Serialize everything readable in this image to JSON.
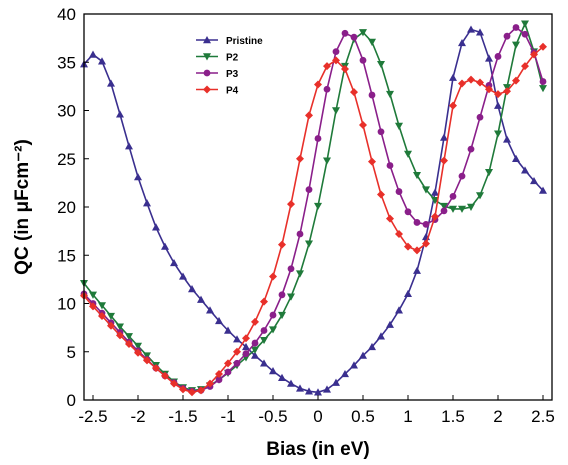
{
  "chart_data": {
    "type": "line",
    "title": "",
    "xlabel": "Bias (in eV)",
    "ylabel": "QC (in μFcm⁻²)",
    "xlim": [
      -2.6,
      2.6
    ],
    "ylim": [
      0,
      40
    ],
    "xticks": [
      -2.5,
      -2,
      -1.5,
      -1,
      -0.5,
      0,
      0.5,
      1,
      1.5,
      2,
      2.5
    ],
    "xtick_labels": [
      "-2.5",
      "-2",
      "-1.5",
      "-1",
      "-0.5",
      "0",
      "0.5",
      "1",
      "1.5",
      "2",
      "2.5"
    ],
    "yticks": [
      0,
      5,
      10,
      15,
      20,
      25,
      30,
      35,
      40
    ],
    "ytick_labels": [
      "0",
      "5",
      "10",
      "15",
      "20",
      "25",
      "30",
      "35",
      "40"
    ],
    "grid": false,
    "legend_position": "top-left",
    "series": [
      {
        "name": "Pristine",
        "color": "#3a2f8f",
        "marker": "triangle-up",
        "x": [
          -2.6,
          -2.5,
          -2.4,
          -2.3,
          -2.2,
          -2.1,
          -2.0,
          -1.9,
          -1.8,
          -1.7,
          -1.6,
          -1.5,
          -1.4,
          -1.3,
          -1.2,
          -1.1,
          -1.0,
          -0.9,
          -0.8,
          -0.7,
          -0.6,
          -0.5,
          -0.4,
          -0.3,
          -0.2,
          -0.1,
          0.0,
          0.1,
          0.2,
          0.3,
          0.4,
          0.5,
          0.6,
          0.7,
          0.8,
          0.9,
          1.0,
          1.1,
          1.2,
          1.3,
          1.4,
          1.5,
          1.6,
          1.7,
          1.8,
          1.9,
          2.0,
          2.1,
          2.2,
          2.3,
          2.4,
          2.5
        ],
        "y": [
          34.8,
          35.8,
          35.1,
          32.8,
          29.6,
          26.3,
          23.1,
          20.4,
          17.9,
          15.9,
          14.2,
          12.8,
          11.5,
          10.4,
          9.3,
          8.2,
          7.2,
          6.3,
          5.5,
          4.6,
          3.8,
          3.0,
          2.3,
          1.7,
          1.2,
          0.9,
          0.8,
          1.1,
          1.8,
          2.7,
          3.6,
          4.6,
          5.5,
          6.6,
          7.8,
          9.3,
          11.0,
          13.4,
          16.9,
          21.5,
          27.2,
          33.4,
          37.0,
          38.4,
          38.1,
          35.4,
          30.5,
          27.0,
          25.0,
          23.8,
          22.7,
          21.7
        ]
      },
      {
        "name": "P2",
        "color": "#1f7a3a",
        "marker": "triangle-down",
        "x": [
          -2.6,
          -2.5,
          -2.4,
          -2.3,
          -2.2,
          -2.1,
          -2.0,
          -1.9,
          -1.8,
          -1.7,
          -1.6,
          -1.5,
          -1.4,
          -1.3,
          -1.2,
          -1.1,
          -1.0,
          -0.9,
          -0.8,
          -0.7,
          -0.6,
          -0.5,
          -0.4,
          -0.3,
          -0.2,
          -0.1,
          0.0,
          0.1,
          0.2,
          0.3,
          0.4,
          0.5,
          0.6,
          0.7,
          0.8,
          0.9,
          1.0,
          1.1,
          1.2,
          1.3,
          1.4,
          1.5,
          1.6,
          1.7,
          1.8,
          1.9,
          2.0,
          2.1,
          2.2,
          2.3,
          2.4,
          2.5
        ],
        "y": [
          12.1,
          10.9,
          9.8,
          8.7,
          7.6,
          6.6,
          5.6,
          4.6,
          3.6,
          2.7,
          1.9,
          1.3,
          1.0,
          1.1,
          1.5,
          2.1,
          2.8,
          3.6,
          4.4,
          5.2,
          6.2,
          7.3,
          8.8,
          10.7,
          13.1,
          16.2,
          20.1,
          24.8,
          30.0,
          34.6,
          37.4,
          38.1,
          37.1,
          34.8,
          31.7,
          28.4,
          25.5,
          23.3,
          21.8,
          20.7,
          20.1,
          19.8,
          19.8,
          20.0,
          21.2,
          23.6,
          27.6,
          32.4,
          36.8,
          39.0,
          36.1,
          32.3
        ]
      },
      {
        "name": "P3",
        "color": "#8a1f8a",
        "marker": "circle",
        "x": [
          -2.6,
          -2.5,
          -2.4,
          -2.3,
          -2.2,
          -2.1,
          -2.0,
          -1.9,
          -1.8,
          -1.7,
          -1.6,
          -1.5,
          -1.4,
          -1.3,
          -1.2,
          -1.1,
          -1.0,
          -0.9,
          -0.8,
          -0.7,
          -0.6,
          -0.5,
          -0.4,
          -0.3,
          -0.2,
          -0.1,
          0.0,
          0.1,
          0.2,
          0.3,
          0.4,
          0.5,
          0.6,
          0.7,
          0.8,
          0.9,
          1.0,
          1.1,
          1.2,
          1.3,
          1.4,
          1.5,
          1.6,
          1.7,
          1.8,
          1.9,
          2.0,
          2.1,
          2.2,
          2.3,
          2.4,
          2.5
        ],
        "y": [
          11.0,
          10.0,
          9.0,
          8.0,
          7.0,
          6.0,
          5.1,
          4.2,
          3.3,
          2.5,
          1.8,
          1.2,
          0.9,
          1.0,
          1.4,
          2.1,
          2.9,
          3.8,
          4.8,
          5.9,
          7.2,
          8.8,
          10.9,
          13.6,
          17.2,
          21.8,
          27.1,
          32.2,
          36.1,
          38.0,
          37.6,
          35.2,
          31.6,
          27.8,
          24.3,
          21.6,
          19.5,
          18.4,
          18.2,
          18.7,
          19.6,
          21.1,
          23.2,
          26.0,
          29.3,
          32.6,
          35.6,
          37.7,
          38.6,
          37.9,
          36.0,
          33.0
        ]
      },
      {
        "name": "P4",
        "color": "#e8302a",
        "marker": "diamond",
        "x": [
          -2.6,
          -2.5,
          -2.4,
          -2.3,
          -2.2,
          -2.1,
          -2.0,
          -1.9,
          -1.8,
          -1.7,
          -1.6,
          -1.5,
          -1.4,
          -1.3,
          -1.2,
          -1.1,
          -1.0,
          -0.9,
          -0.8,
          -0.7,
          -0.6,
          -0.5,
          -0.4,
          -0.3,
          -0.2,
          -0.1,
          0.0,
          0.1,
          0.2,
          0.3,
          0.4,
          0.5,
          0.6,
          0.7,
          0.8,
          0.9,
          1.0,
          1.1,
          1.2,
          1.3,
          1.4,
          1.5,
          1.6,
          1.7,
          1.8,
          1.9,
          2.0,
          2.1,
          2.2,
          2.3,
          2.4,
          2.5
        ],
        "y": [
          10.8,
          9.7,
          8.7,
          7.7,
          6.7,
          5.8,
          4.9,
          4.1,
          3.3,
          2.5,
          1.7,
          1.1,
          0.8,
          1.0,
          1.7,
          2.7,
          3.8,
          5.0,
          6.4,
          8.1,
          10.2,
          12.8,
          16.1,
          20.3,
          25.0,
          29.5,
          32.7,
          34.6,
          35.2,
          34.3,
          31.9,
          28.5,
          24.7,
          21.3,
          18.8,
          17.2,
          15.9,
          15.5,
          16.2,
          19.0,
          24.8,
          30.5,
          32.8,
          33.2,
          32.9,
          32.2,
          31.7,
          32.0,
          33.1,
          34.6,
          35.8,
          36.6
        ]
      }
    ]
  }
}
